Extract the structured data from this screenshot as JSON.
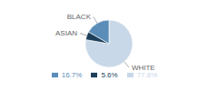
{
  "chart_data": {
    "type": "pie",
    "categories": [
      "WHITE",
      "ASIAN",
      "BLACK"
    ],
    "values": [
      77.8,
      5.6,
      16.7
    ],
    "value_labels": [
      "77.8%",
      "5.6%",
      "16.7%"
    ],
    "colors": [
      "#c9d8e8",
      "#1e3f5a",
      "#5b8db8"
    ],
    "legend": "bottom"
  }
}
